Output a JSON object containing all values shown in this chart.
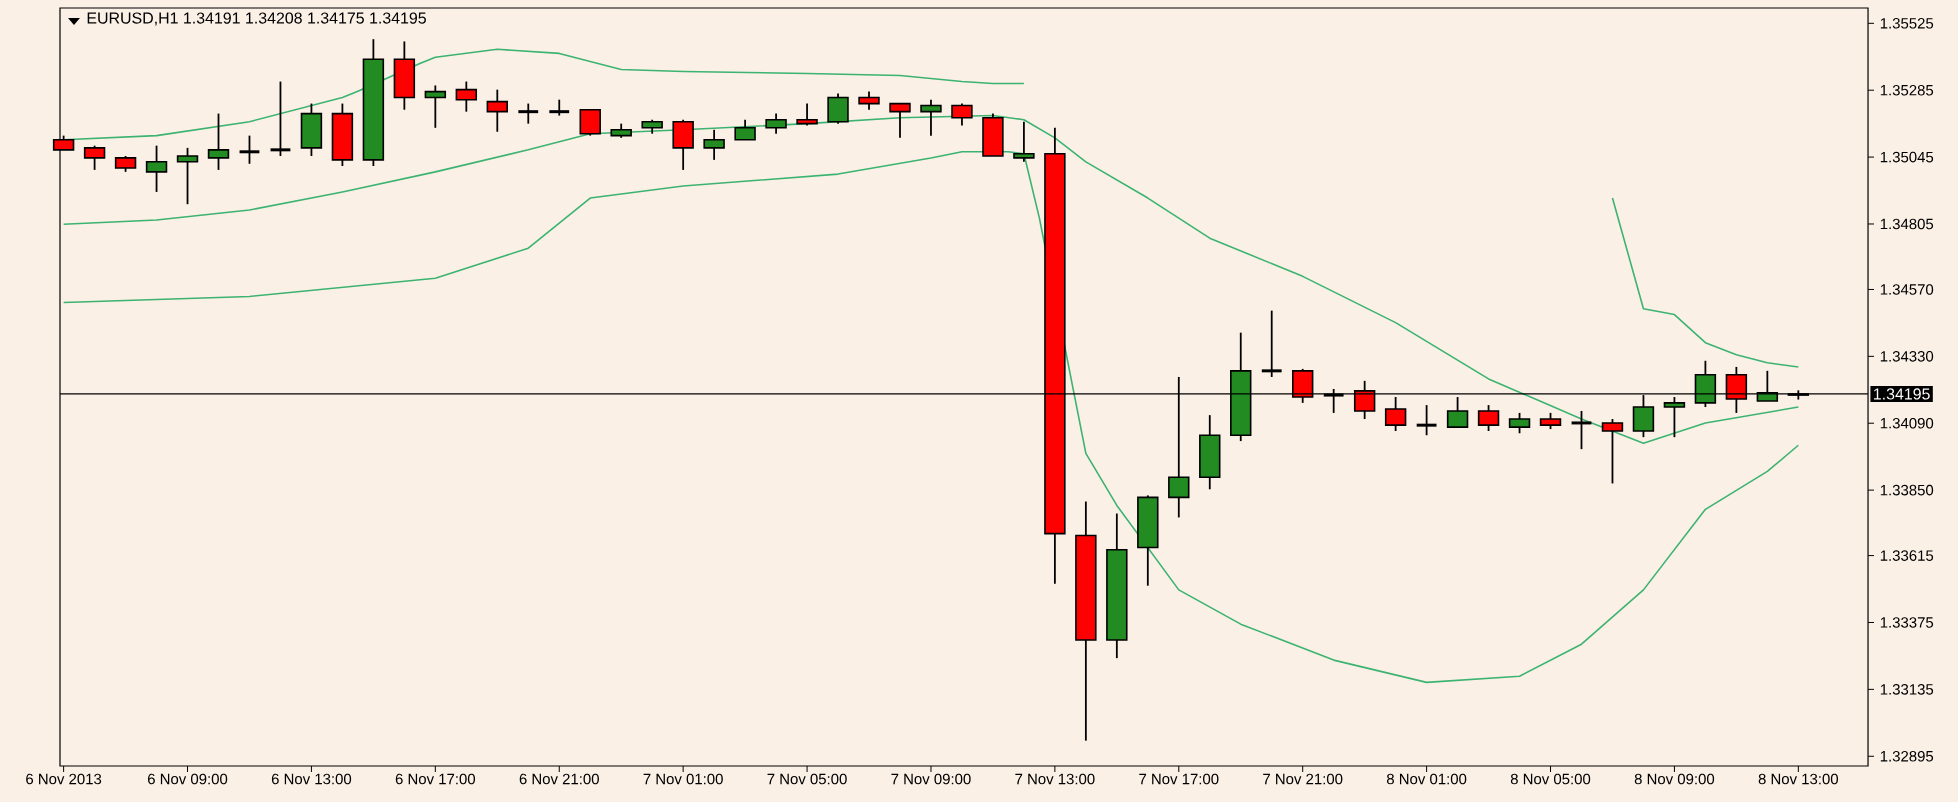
{
  "chart_data": {
    "type": "candlestick",
    "title": "EURUSD,H1  1.34191 1.34208 1.34175 1.34195",
    "x": [
      "2013-11-06T05:00",
      "2013-11-06T06:00",
      "2013-11-06T07:00",
      "2013-11-06T08:00",
      "2013-11-06T09:00",
      "2013-11-06T10:00",
      "2013-11-06T11:00",
      "2013-11-06T12:00",
      "2013-11-06T13:00",
      "2013-11-06T14:00",
      "2013-11-06T15:00",
      "2013-11-06T16:00",
      "2013-11-06T17:00",
      "2013-11-06T18:00",
      "2013-11-06T19:00",
      "2013-11-06T20:00",
      "2013-11-06T21:00",
      "2013-11-06T22:00",
      "2013-11-06T23:00",
      "2013-11-07T00:00",
      "2013-11-07T01:00",
      "2013-11-07T02:00",
      "2013-11-07T03:00",
      "2013-11-07T04:00",
      "2013-11-07T05:00",
      "2013-11-07T06:00",
      "2013-11-07T07:00",
      "2013-11-07T08:00",
      "2013-11-07T09:00",
      "2013-11-07T10:00",
      "2013-11-07T11:00",
      "2013-11-07T12:00",
      "2013-11-07T13:00",
      "2013-11-07T14:00",
      "2013-11-07T15:00",
      "2013-11-07T16:00",
      "2013-11-07T17:00",
      "2013-11-07T18:00",
      "2013-11-07T19:00",
      "2013-11-07T20:00",
      "2013-11-07T21:00",
      "2013-11-07T22:00",
      "2013-11-07T23:00",
      "2013-11-08T00:00",
      "2013-11-08T01:00",
      "2013-11-08T02:00",
      "2013-11-08T03:00",
      "2013-11-08T04:00",
      "2013-11-08T05:00",
      "2013-11-08T06:00",
      "2013-11-08T07:00",
      "2013-11-08T08:00",
      "2013-11-08T09:00",
      "2013-11-08T10:00",
      "2013-11-08T11:00",
      "2013-11-08T12:00",
      "2013-11-08T13:00"
    ],
    "ohlc": [
      [
        1.35107,
        1.35122,
        1.35071,
        1.35071
      ],
      [
        1.35078,
        1.35086,
        1.34999,
        1.35042
      ],
      [
        1.35042,
        1.35049,
        1.34992,
        1.35006
      ],
      [
        1.34992,
        1.35086,
        1.3492,
        1.35028
      ],
      [
        1.35028,
        1.35078,
        1.34876,
        1.35049
      ],
      [
        1.35042,
        1.35201,
        1.34999,
        1.35071
      ],
      [
        1.35064,
        1.35122,
        1.35021,
        1.35064
      ],
      [
        1.35071,
        1.35316,
        1.35049,
        1.35071
      ],
      [
        1.35078,
        1.35237,
        1.35049,
        1.35201
      ],
      [
        1.35201,
        1.35237,
        1.35013,
        1.35035
      ],
      [
        1.35035,
        1.35468,
        1.35013,
        1.35396
      ],
      [
        1.35396,
        1.3546,
        1.35215,
        1.35259
      ],
      [
        1.35259,
        1.35302,
        1.3515,
        1.3528
      ],
      [
        1.35287,
        1.35316,
        1.35208,
        1.35251
      ],
      [
        1.35244,
        1.35287,
        1.35136,
        1.35208
      ],
      [
        1.35208,
        1.35237,
        1.35165,
        1.35208
      ],
      [
        1.35208,
        1.35251,
        1.35194,
        1.35208
      ],
      [
        1.35215,
        1.35215,
        1.35122,
        1.35129
      ],
      [
        1.35122,
        1.35165,
        1.35114,
        1.35143
      ],
      [
        1.3515,
        1.35179,
        1.35129,
        1.35172
      ],
      [
        1.35172,
        1.35179,
        1.34999,
        1.35078
      ],
      [
        1.35078,
        1.35143,
        1.35035,
        1.35107
      ],
      [
        1.35107,
        1.35179,
        1.35107,
        1.3515
      ],
      [
        1.3515,
        1.35201,
        1.35129,
        1.35179
      ],
      [
        1.35179,
        1.35237,
        1.35158,
        1.35165
      ],
      [
        1.35172,
        1.35273,
        1.35165,
        1.35259
      ],
      [
        1.35259,
        1.3528,
        1.35215,
        1.35237
      ],
      [
        1.35237,
        1.35237,
        1.35114,
        1.35208
      ],
      [
        1.35208,
        1.35251,
        1.35122,
        1.3523
      ],
      [
        1.3523,
        1.35237,
        1.35158,
        1.35186
      ],
      [
        1.35186,
        1.35201,
        1.35049,
        1.35049
      ],
      [
        1.35042,
        1.35172,
        1.35028,
        1.35057
      ],
      [
        1.35057,
        1.3515,
        1.33514,
        1.33694
      ],
      [
        1.33687,
        1.33809,
        1.32951,
        1.33312
      ],
      [
        1.33312,
        1.33766,
        1.33247,
        1.33636
      ],
      [
        1.33644,
        1.33831,
        1.33507,
        1.33824
      ],
      [
        1.33824,
        1.34256,
        1.33752,
        1.33896
      ],
      [
        1.33896,
        1.34119,
        1.33853,
        1.34047
      ],
      [
        1.34047,
        1.34415,
        1.34026,
        1.34278
      ],
      [
        1.34278,
        1.34494,
        1.34256,
        1.34278
      ],
      [
        1.34278,
        1.34285,
        1.34163,
        1.34184
      ],
      [
        1.34191,
        1.34213,
        1.34127,
        1.34191
      ],
      [
        1.34206,
        1.34242,
        1.34105,
        1.34134
      ],
      [
        1.34141,
        1.34184,
        1.34062,
        1.34083
      ],
      [
        1.34083,
        1.34155,
        1.34047,
        1.34083
      ],
      [
        1.34076,
        1.34184,
        1.34076,
        1.34134
      ],
      [
        1.34134,
        1.34155,
        1.34062,
        1.34083
      ],
      [
        1.34076,
        1.34127,
        1.34054,
        1.34105
      ],
      [
        1.34105,
        1.34127,
        1.34069,
        1.34083
      ],
      [
        1.34091,
        1.34134,
        1.33997,
        1.34091
      ],
      [
        1.34091,
        1.34105,
        1.33874,
        1.34062
      ],
      [
        1.34062,
        1.34191,
        1.3404,
        1.34148
      ],
      [
        1.34148,
        1.34184,
        1.3404,
        1.34163
      ],
      [
        1.34163,
        1.34314,
        1.34148,
        1.34264
      ],
      [
        1.34264,
        1.34292,
        1.34127,
        1.34177
      ],
      [
        1.3417,
        1.34278,
        1.3417,
        1.34199
      ],
      [
        1.34191,
        1.34208,
        1.34175,
        1.34195
      ]
    ],
    "colors": [
      "#ff0000",
      "#ff0000",
      "#ff0000",
      "#228b22",
      "#228b22",
      "#228b22",
      "#000000",
      "#000000",
      "#228b22",
      "#ff0000",
      "#228b22",
      "#ff0000",
      "#228b22",
      "#ff0000",
      "#ff0000",
      "#000000",
      "#000000",
      "#ff0000",
      "#228b22",
      "#228b22",
      "#ff0000",
      "#228b22",
      "#228b22",
      "#228b22",
      "#ff0000",
      "#228b22",
      "#ff0000",
      "#ff0000",
      "#228b22",
      "#ff0000",
      "#ff0000",
      "#228b22",
      "#ff0000",
      "#ff0000",
      "#228b22",
      "#228b22",
      "#228b22",
      "#228b22",
      "#228b22",
      "#000000",
      "#ff0000",
      "#000000",
      "#ff0000",
      "#ff0000",
      "#000000",
      "#228b22",
      "#ff0000",
      "#228b22",
      "#ff0000",
      "#000000",
      "#ff0000",
      "#228b22",
      "#228b22",
      "#228b22",
      "#ff0000",
      "#228b22",
      "#228b22"
    ],
    "series": [
      {
        "type": "line",
        "color": "#3cb371",
        "x": [
          "2013-11-06T05:00",
          "2013-11-06T08:00",
          "2013-11-06T11:00",
          "2013-11-06T14:00",
          "2013-11-06T14:30",
          "2013-11-06T16:30",
          "2013-11-06T17:00",
          "2013-11-06T19:00",
          "2013-11-06T21:00",
          "2013-11-06T23:00",
          "2013-11-07T01:00",
          "2013-11-07T05:00",
          "2013-11-07T08:00",
          "2013-11-07T10:00",
          "2013-11-07T11:00",
          "2013-11-07T12:00",
          "2013-11-07T13:00",
          "2013-11-07T14:00",
          "2013-11-08T06:00",
          "2013-11-08T07:00",
          "2013-11-08T08:00",
          "2013-11-08T09:00",
          "2013-11-08T10:00",
          "2013-11-08T11:00",
          "2013-11-08T12:00",
          "2013-11-08T13:00"
        ],
        "values": [
          1.35107,
          1.35122,
          1.35172,
          1.35259,
          1.35281,
          1.35381,
          1.35403,
          1.35432,
          1.35417,
          1.35359,
          1.35352,
          1.35345,
          1.35338,
          1.35316,
          1.35309,
          1.35309,
          null,
          null,
          null,
          1.34898,
          1.34501,
          1.3448,
          1.34379,
          1.34336,
          1.34307,
          1.34292
        ]
      },
      {
        "type": "line",
        "color": "#3cb371",
        "x": [
          "2013-11-06T05:00",
          "2013-11-06T08:00",
          "2013-11-06T11:00",
          "2013-11-06T14:00",
          "2013-11-06T17:00",
          "2013-11-06T20:00",
          "2013-11-06T22:00",
          "2013-11-07T01:00",
          "2013-11-07T05:00",
          "2013-11-07T08:00",
          "2013-11-07T11:00",
          "2013-11-07T12:00",
          "2013-11-07T13:00",
          "2013-11-07T14:00",
          "2013-11-07T16:00",
          "2013-11-07T18:00",
          "2013-11-07T21:00",
          "2013-11-08T00:00",
          "2013-11-08T03:00",
          "2013-11-08T06:00",
          "2013-11-08T08:00",
          "2013-11-08T10:00",
          "2013-11-08T13:00"
        ],
        "values": [
          1.34804,
          1.34819,
          1.34855,
          1.3492,
          1.34992,
          1.35071,
          1.35129,
          1.35143,
          1.35165,
          1.35186,
          1.35194,
          1.35179,
          1.35114,
          1.35028,
          1.34898,
          1.34754,
          1.34617,
          1.34451,
          1.34249,
          1.34105,
          1.34018,
          1.34091,
          1.34148
        ]
      },
      {
        "type": "line",
        "color": "#3cb371",
        "x": [
          "2013-11-06T05:00",
          "2013-11-06T11:00",
          "2013-11-06T17:00",
          "2013-11-06T20:00",
          "2013-11-06T22:00",
          "2013-11-07T01:00",
          "2013-11-07T06:00",
          "2013-11-07T09:00",
          "2013-11-07T10:00",
          "2013-11-07T11:30",
          "2013-11-07T12:00",
          "2013-11-07T12:30",
          "2013-11-07T14:00",
          "2013-11-07T15:00",
          "2013-11-07T17:00",
          "2013-11-07T19:00",
          "2013-11-07T22:00",
          "2013-11-08T01:00",
          "2013-11-08T04:00",
          "2013-11-08T06:00",
          "2013-11-08T08:00",
          "2013-11-08T10:00",
          "2013-11-08T12:00",
          "2013-11-08T13:00"
        ],
        "values": [
          1.34523,
          1.34545,
          1.3461,
          1.34718,
          1.34898,
          1.34941,
          1.34984,
          1.35042,
          1.35064,
          1.35064,
          1.35057,
          1.34826,
          1.33982,
          1.33795,
          1.33492,
          1.33369,
          1.3324,
          1.3316,
          1.33182,
          1.33297,
          1.33492,
          1.33781,
          1.33917,
          1.34011
        ]
      }
    ],
    "xlim": [
      "2013-11-06T04:53",
      "2013-11-08T15:15"
    ],
    "xticks": [
      {
        "value": "2013-11-06T05:00",
        "label": "6 Nov 2013"
      },
      {
        "value": "2013-11-06T09:00",
        "label": "6 Nov 09:00"
      },
      {
        "value": "2013-11-06T13:00",
        "label": "6 Nov 13:00"
      },
      {
        "value": "2013-11-06T17:00",
        "label": "6 Nov 17:00"
      },
      {
        "value": "2013-11-06T21:00",
        "label": "6 Nov 21:00"
      },
      {
        "value": "2013-11-07T01:00",
        "label": "7 Nov 01:00"
      },
      {
        "value": "2013-11-07T05:00",
        "label": "7 Nov 05:00"
      },
      {
        "value": "2013-11-07T09:00",
        "label": "7 Nov 09:00"
      },
      {
        "value": "2013-11-07T13:00",
        "label": "7 Nov 13:00"
      },
      {
        "value": "2013-11-07T17:00",
        "label": "7 Nov 17:00"
      },
      {
        "value": "2013-11-07T21:00",
        "label": "7 Nov 21:00"
      },
      {
        "value": "2013-11-08T01:00",
        "label": "8 Nov 01:00"
      },
      {
        "value": "2013-11-08T05:00",
        "label": "8 Nov 05:00"
      },
      {
        "value": "2013-11-08T09:00",
        "label": "8 Nov 09:00"
      },
      {
        "value": "2013-11-08T13:00",
        "label": "8 Nov 13:00"
      }
    ],
    "ylim": [
      1.3286,
      1.3558
    ],
    "yticks": [
      1.35525,
      1.35285,
      1.35045,
      1.34805,
      {
        "value": 1.3457,
        "label": "1.34570"
      },
      {
        "value": 1.3433,
        "label": "1.34330"
      },
      {
        "value": 1.3409,
        "label": "1.34090"
      },
      {
        "value": 1.3385,
        "label": "1.33850"
      },
      1.33615,
      1.33375,
      1.33135,
      1.32895
    ],
    "ref_lines": [
      {
        "axis": "y",
        "value": 1.34195,
        "label": "1.34195",
        "color": "#000000"
      }
    ],
    "grid": false
  }
}
